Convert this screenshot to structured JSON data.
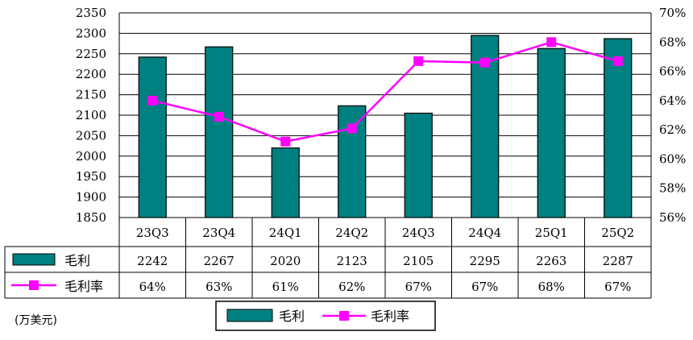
{
  "chart_data": {
    "type": "bar",
    "categories": [
      "23Q3",
      "23Q4",
      "24Q1",
      "24Q2",
      "24Q3",
      "24Q4",
      "25Q1",
      "25Q2"
    ],
    "series": [
      {
        "name": "毛利",
        "type": "bar",
        "axis": "left",
        "color": "#008080",
        "values": [
          2242,
          2267,
          2020,
          2123,
          2105,
          2295,
          2263,
          2287
        ],
        "table_labels": [
          "2242",
          "2267",
          "2020",
          "2123",
          "2105",
          "2295",
          "2263",
          "2287"
        ]
      },
      {
        "name": "毛利率",
        "type": "line",
        "axis": "right",
        "color": "#ff00ff",
        "values": [
          64.0,
          62.9,
          61.2,
          62.1,
          66.7,
          66.6,
          68.0,
          66.7
        ],
        "table_labels": [
          "64%",
          "63%",
          "61%",
          "62%",
          "67%",
          "67%",
          "68%",
          "67%"
        ]
      }
    ],
    "ylim": [
      1850,
      2350
    ],
    "yticks": [
      "1850",
      "1900",
      "1950",
      "2000",
      "2050",
      "2100",
      "2150",
      "2200",
      "2250",
      "2300",
      "2350"
    ],
    "y2lim": [
      56,
      70
    ],
    "y2ticks": [
      "56%",
      "58%",
      "60%",
      "62%",
      "64%",
      "66%",
      "68%",
      "70%"
    ],
    "unit_label": "(万美元)",
    "legend_position": "bottom",
    "grid": true
  }
}
